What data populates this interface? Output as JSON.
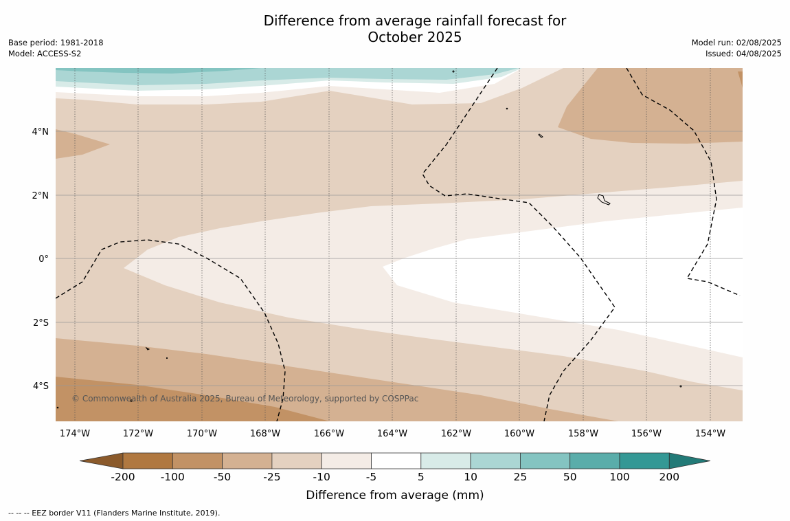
{
  "title_line1": "Difference from average rainfall forecast for",
  "title_line2": "October 2025",
  "meta": {
    "base_period": "Base period: 1981-2018",
    "model": "Model: ACCESS-S2",
    "model_run": "Model run: 02/08/2025",
    "issued": "Issued: 04/08/2025"
  },
  "map": {
    "x_ticks": [
      "174°W",
      "172°W",
      "170°W",
      "168°W",
      "166°W",
      "164°W",
      "162°W",
      "160°W",
      "158°W",
      "156°W",
      "154°W"
    ],
    "y_ticks": [
      "4°N",
      "2°N",
      "0°",
      "2°S",
      "4°S"
    ],
    "copyright": "© Commonwealth of Australia 2025, Bureau of Meteorology, supported by COSPPac"
  },
  "colorbar": {
    "labels": [
      "-200",
      "-100",
      "-50",
      "-25",
      "-10",
      "-5",
      "5",
      "10",
      "25",
      "50",
      "100",
      "200"
    ],
    "colors": [
      "#8b5a2b",
      "#b07840",
      "#c29265",
      "#d4b192",
      "#e4d1c0",
      "#f4ece6",
      "#ffffff",
      "#d8ebe8",
      "#abd6d4",
      "#84c4c1",
      "#5aadaa",
      "#349895",
      "#227a77"
    ],
    "title": "Difference from average (mm)"
  },
  "legend_note": "--  --  -- EEZ border V11 (Flanders Marine Institute, 2019)."
}
